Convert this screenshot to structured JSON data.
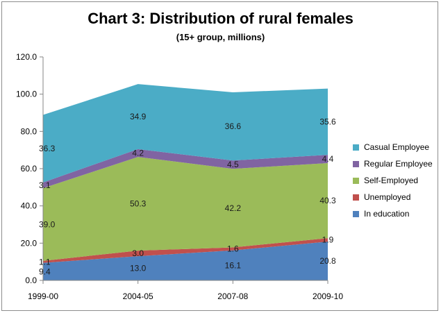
{
  "title": "Chart 3: Distribution of rural females",
  "subtitle": "(15+ group, millions)",
  "colors": {
    "In education": "#4f81bd",
    "Unemployed": "#c0504d",
    "Self-Employed": "#9bbb59",
    "Regular Employee": "#8064a2",
    "Casual Employee": "#4bacc6"
  },
  "chart_data": {
    "type": "area",
    "stacked": true,
    "categories": [
      "1999-00",
      "2004-05",
      "2007-08",
      "2009-10"
    ],
    "ylim": [
      0,
      120
    ],
    "yticks": [
      "0.0",
      "20.0",
      "40.0",
      "60.0",
      "80.0",
      "100.0",
      "120.0"
    ],
    "grid": false,
    "legend_position": "right",
    "series": [
      {
        "name": "In education",
        "values": [
          9.4,
          13.0,
          16.1,
          20.8
        ]
      },
      {
        "name": "Unemployed",
        "values": [
          1.1,
          3.0,
          1.6,
          1.9
        ]
      },
      {
        "name": "Self-Employed",
        "values": [
          39.0,
          50.3,
          42.2,
          40.3
        ]
      },
      {
        "name": "Regular Employee",
        "values": [
          3.1,
          4.2,
          4.5,
          4.4
        ]
      },
      {
        "name": "Casual Employee",
        "values": [
          36.3,
          34.9,
          36.6,
          35.6
        ]
      }
    ],
    "legend_order": [
      "Casual Employee",
      "Regular Employee",
      "Self-Employed",
      "Unemployed",
      "In education"
    ]
  }
}
